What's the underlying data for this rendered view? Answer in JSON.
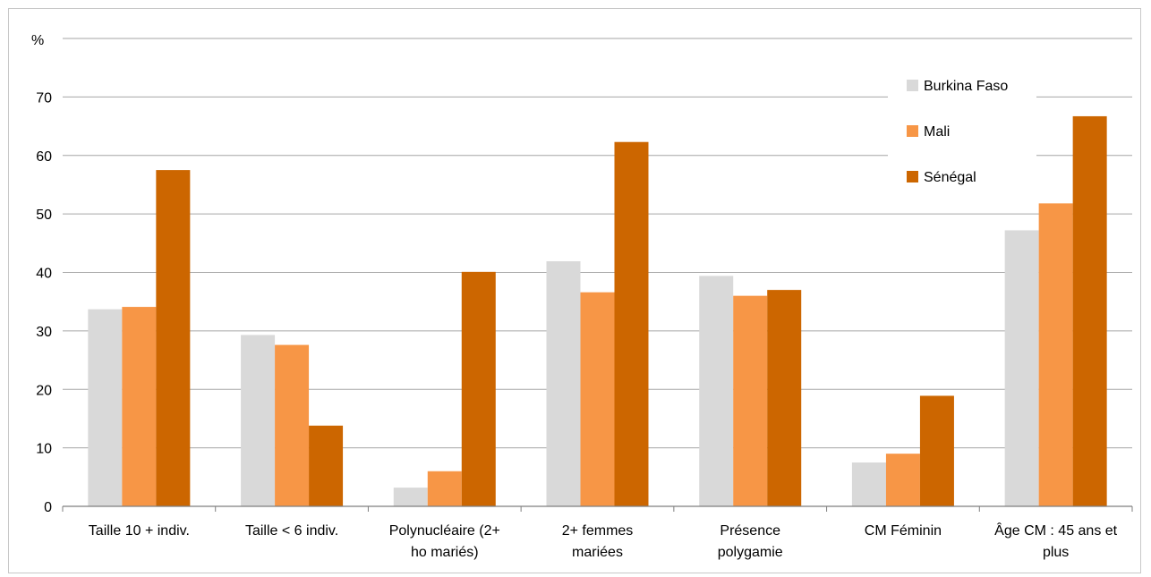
{
  "chart_data": {
    "type": "bar",
    "title": "",
    "ylabel": "%",
    "xlabel": "",
    "ylim": [
      0,
      80
    ],
    "yticks": [
      0,
      10,
      20,
      30,
      40,
      50,
      60,
      70
    ],
    "grid": true,
    "legend_position": "top-right",
    "categories": [
      [
        "Taille 10 +  indiv."
      ],
      [
        "Taille < 6 indiv."
      ],
      [
        "Polynucléaire (2+",
        "ho mariés)"
      ],
      [
        "2+ femmes",
        "mariées"
      ],
      [
        "Présence",
        "polygamie"
      ],
      [
        "CM Féminin"
      ],
      [
        "Âge CM : 45 ans et",
        "plus"
      ]
    ],
    "series": [
      {
        "name": "Burkina Faso",
        "color": "#d9d9d9",
        "values": [
          33.7,
          29.3,
          3.2,
          41.9,
          39.4,
          7.5,
          47.2
        ]
      },
      {
        "name": "Mali",
        "color": "#f79646",
        "values": [
          34.1,
          27.6,
          6.0,
          36.6,
          36.0,
          9.0,
          51.8
        ]
      },
      {
        "name": "Sénégal",
        "color": "#cc6600",
        "values": [
          57.5,
          13.8,
          40.1,
          62.3,
          37.0,
          18.9,
          66.7
        ]
      }
    ]
  }
}
